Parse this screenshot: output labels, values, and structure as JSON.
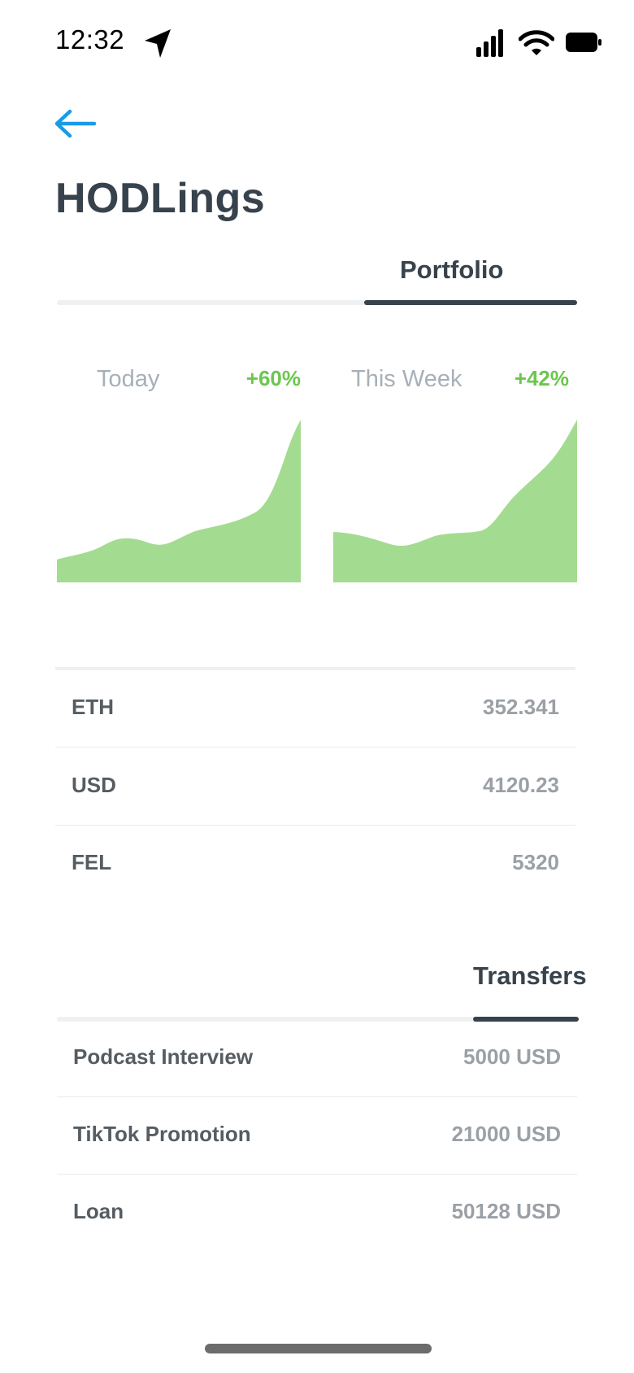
{
  "status_bar": {
    "time": "12:32",
    "icons": [
      "location-arrow-icon",
      "cellular-signal-icon",
      "wifi-icon",
      "battery-icon"
    ]
  },
  "nav": {
    "back_icon": "arrow-left-icon",
    "accent_color": "#1a9be6"
  },
  "title": "HODLings",
  "portfolio": {
    "tab_label": "Portfolio",
    "charts": [
      {
        "label": "Today",
        "change": "+60%"
      },
      {
        "label": "This Week",
        "change": "+42%"
      }
    ],
    "holdings": [
      {
        "symbol": "ETH",
        "amount": "352.341"
      },
      {
        "symbol": "USD",
        "amount": "4120.23"
      },
      {
        "symbol": "FEL",
        "amount": "5320"
      }
    ]
  },
  "transfers": {
    "tab_label": "Transfers",
    "items": [
      {
        "name": "Podcast Interview",
        "amount": "5000 USD"
      },
      {
        "name": "TikTok Promotion",
        "amount": "21000 USD"
      },
      {
        "name": "Loan",
        "amount": "50128 USD"
      }
    ]
  },
  "colors": {
    "text_dark": "#37424c",
    "chart_fill": "#a3dc90",
    "positive": "#6cc64e",
    "muted": "#a7b0b8"
  },
  "chart_data": [
    {
      "type": "area",
      "title": "Today",
      "x": [
        0,
        1,
        2,
        3,
        4,
        5,
        6,
        7,
        8,
        9,
        10
      ],
      "values": [
        10,
        14,
        20,
        16,
        22,
        28,
        32,
        38,
        48,
        80,
        100
      ]
    },
    {
      "type": "area",
      "title": "This Week",
      "x": [
        0,
        1,
        2,
        3,
        4,
        5,
        6,
        7,
        8,
        9,
        10
      ],
      "values": [
        30,
        28,
        22,
        26,
        30,
        32,
        48,
        60,
        70,
        82,
        100
      ]
    }
  ]
}
